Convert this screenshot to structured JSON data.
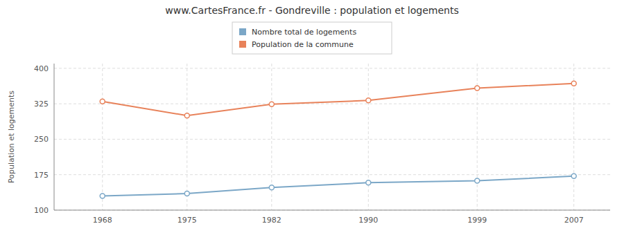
{
  "chart_data": {
    "type": "line",
    "title": "www.CartesFrance.fr - Gondreville : population et logements",
    "y_label": "Population et logements",
    "x": [
      1968,
      1975,
      1982,
      1990,
      1999,
      2007
    ],
    "series": [
      {
        "name": "Nombre total de logements",
        "color": "#7ba7c7",
        "marker": "circle",
        "values": [
          130,
          135,
          148,
          158,
          162,
          172
        ]
      },
      {
        "name": "Population de la commune",
        "color": "#e8825a",
        "marker": "circle",
        "values": [
          330,
          300,
          324,
          332,
          358,
          368
        ]
      }
    ],
    "xlim": [
      1964,
      2010
    ],
    "xticks": [
      1968,
      1975,
      1982,
      1990,
      1999,
      2007
    ],
    "ylim": [
      100,
      410
    ],
    "yticks": [
      100,
      175,
      250,
      325,
      400
    ],
    "grid": true,
    "legend": "top"
  }
}
